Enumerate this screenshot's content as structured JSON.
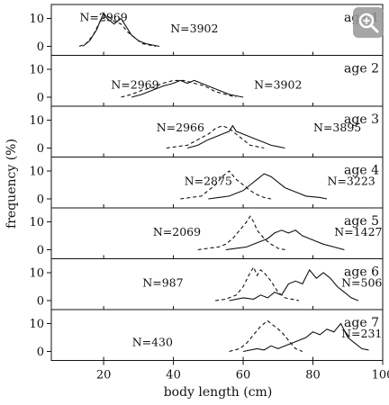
{
  "chart_data": {
    "type": "line",
    "xlabel": "body length (cm)",
    "ylabel": "frequency (%)",
    "xlim": [
      5,
      100
    ],
    "ylim": [
      0,
      15
    ],
    "x_ticks": [
      20,
      40,
      60,
      80,
      100
    ],
    "y_ticks": [
      0,
      10
    ],
    "grid": false,
    "panels": [
      {
        "label": "age 1",
        "n_dashed": "N=2969",
        "n_solid": "N=3902",
        "dashed": [
          [
            13,
            0
          ],
          [
            15,
            1
          ],
          [
            17,
            4
          ],
          [
            19,
            9
          ],
          [
            21,
            11
          ],
          [
            23,
            9
          ],
          [
            25,
            8
          ],
          [
            27,
            5
          ],
          [
            29,
            3
          ],
          [
            31,
            1
          ],
          [
            33,
            0.5
          ],
          [
            35,
            0
          ]
        ],
        "solid": [
          [
            14,
            0
          ],
          [
            16,
            2
          ],
          [
            18,
            6
          ],
          [
            20,
            12
          ],
          [
            21,
            10
          ],
          [
            22,
            9
          ],
          [
            23,
            8
          ],
          [
            24,
            9
          ],
          [
            25,
            10
          ],
          [
            26,
            8
          ],
          [
            28,
            4
          ],
          [
            30,
            2
          ],
          [
            32,
            1
          ],
          [
            34,
            0.5
          ],
          [
            36,
            0
          ]
        ]
      },
      {
        "label": "age 2",
        "n_dashed": "N=2969",
        "n_solid": "N=3902",
        "dashed": [
          [
            25,
            0
          ],
          [
            28,
            1
          ],
          [
            31,
            2.5
          ],
          [
            34,
            3.5
          ],
          [
            37,
            5
          ],
          [
            40,
            6
          ],
          [
            43,
            6
          ],
          [
            46,
            5
          ],
          [
            49,
            4
          ],
          [
            52,
            2
          ],
          [
            55,
            1
          ],
          [
            58,
            0
          ]
        ],
        "solid": [
          [
            28,
            0
          ],
          [
            31,
            1
          ],
          [
            34,
            2.5
          ],
          [
            37,
            4
          ],
          [
            40,
            5
          ],
          [
            42,
            6
          ],
          [
            44,
            5
          ],
          [
            46,
            6
          ],
          [
            48,
            5
          ],
          [
            50,
            4
          ],
          [
            52,
            3
          ],
          [
            54,
            2
          ],
          [
            56,
            1
          ],
          [
            58,
            0.5
          ],
          [
            60,
            0
          ]
        ]
      },
      {
        "label": "age 3",
        "n_dashed": "N=2966",
        "n_solid": "N=3895",
        "dashed": [
          [
            38,
            0
          ],
          [
            41,
            0.5
          ],
          [
            44,
            1
          ],
          [
            47,
            3
          ],
          [
            50,
            5
          ],
          [
            52,
            7
          ],
          [
            54,
            8
          ],
          [
            56,
            7
          ],
          [
            58,
            5
          ],
          [
            60,
            3
          ],
          [
            62,
            1
          ],
          [
            64,
            0.5
          ],
          [
            66,
            0
          ]
        ],
        "solid": [
          [
            44,
            0
          ],
          [
            47,
            1
          ],
          [
            50,
            3
          ],
          [
            52,
            4
          ],
          [
            54,
            5
          ],
          [
            56,
            6
          ],
          [
            57,
            8
          ],
          [
            58,
            6
          ],
          [
            60,
            5
          ],
          [
            62,
            4
          ],
          [
            64,
            3
          ],
          [
            66,
            2
          ],
          [
            68,
            1
          ],
          [
            70,
            0.5
          ],
          [
            72,
            0
          ]
        ]
      },
      {
        "label": "age 4",
        "n_dashed": "N=2875",
        "n_solid": "N=3223",
        "dashed": [
          [
            42,
            0
          ],
          [
            45,
            0.5
          ],
          [
            48,
            1
          ],
          [
            50,
            3
          ],
          [
            52,
            5
          ],
          [
            54,
            8
          ],
          [
            56,
            10
          ],
          [
            58,
            7
          ],
          [
            60,
            5
          ],
          [
            62,
            3
          ],
          [
            64,
            1.5
          ],
          [
            66,
            0.5
          ],
          [
            68,
            0
          ]
        ],
        "solid": [
          [
            50,
            0
          ],
          [
            53,
            0.5
          ],
          [
            56,
            1
          ],
          [
            58,
            2
          ],
          [
            60,
            3
          ],
          [
            62,
            5
          ],
          [
            64,
            7
          ],
          [
            66,
            9
          ],
          [
            68,
            8
          ],
          [
            70,
            6
          ],
          [
            72,
            4
          ],
          [
            74,
            3
          ],
          [
            76,
            2
          ],
          [
            78,
            1
          ],
          [
            82,
            0.5
          ],
          [
            84,
            0
          ]
        ]
      },
      {
        "label": "age 5",
        "n_dashed": "N=2069",
        "n_solid": "N=1427",
        "dashed": [
          [
            47,
            0
          ],
          [
            50,
            0.5
          ],
          [
            53,
            1
          ],
          [
            55,
            2
          ],
          [
            57,
            4
          ],
          [
            59,
            7
          ],
          [
            61,
            10
          ],
          [
            62,
            12
          ],
          [
            63,
            10
          ],
          [
            64,
            7
          ],
          [
            66,
            4
          ],
          [
            68,
            2
          ],
          [
            70,
            0.5
          ],
          [
            72,
            0
          ]
        ],
        "solid": [
          [
            55,
            0
          ],
          [
            58,
            0.5
          ],
          [
            61,
            1
          ],
          [
            63,
            2
          ],
          [
            65,
            3
          ],
          [
            67,
            4
          ],
          [
            69,
            6
          ],
          [
            71,
            7
          ],
          [
            73,
            6
          ],
          [
            75,
            7
          ],
          [
            77,
            5
          ],
          [
            79,
            4
          ],
          [
            81,
            3
          ],
          [
            83,
            2
          ],
          [
            86,
            1
          ],
          [
            89,
            0
          ]
        ]
      },
      {
        "label": "age 6",
        "n_dashed": "N=987",
        "n_solid": "N=506",
        "dashed": [
          [
            52,
            0
          ],
          [
            55,
            0.5
          ],
          [
            58,
            2
          ],
          [
            60,
            5
          ],
          [
            62,
            10
          ],
          [
            63,
            12
          ],
          [
            64,
            9
          ],
          [
            65,
            11
          ],
          [
            66,
            10
          ],
          [
            68,
            7
          ],
          [
            70,
            3
          ],
          [
            72,
            1
          ],
          [
            74,
            0.5
          ],
          [
            76,
            0
          ]
        ],
        "solid": [
          [
            56,
            0
          ],
          [
            60,
            1
          ],
          [
            63,
            0.5
          ],
          [
            65,
            2
          ],
          [
            67,
            1
          ],
          [
            69,
            3
          ],
          [
            71,
            2
          ],
          [
            73,
            6
          ],
          [
            75,
            7
          ],
          [
            77,
            6
          ],
          [
            79,
            11
          ],
          [
            81,
            8
          ],
          [
            83,
            10
          ],
          [
            85,
            8
          ],
          [
            87,
            5
          ],
          [
            89,
            3
          ],
          [
            91,
            1
          ],
          [
            93,
            0
          ]
        ]
      },
      {
        "label": "age 7",
        "n_dashed": "N=430",
        "n_solid": "N=231",
        "dashed": [
          [
            56,
            0
          ],
          [
            59,
            1
          ],
          [
            61,
            3
          ],
          [
            63,
            6
          ],
          [
            65,
            9
          ],
          [
            67,
            11
          ],
          [
            69,
            9
          ],
          [
            71,
            7
          ],
          [
            73,
            4
          ],
          [
            75,
            1
          ],
          [
            77,
            0
          ]
        ],
        "solid": [
          [
            60,
            0
          ],
          [
            64,
            1
          ],
          [
            66,
            0.5
          ],
          [
            68,
            2
          ],
          [
            70,
            1
          ],
          [
            72,
            2
          ],
          [
            74,
            3
          ],
          [
            76,
            4
          ],
          [
            78,
            5
          ],
          [
            80,
            7
          ],
          [
            82,
            6
          ],
          [
            84,
            8
          ],
          [
            86,
            7
          ],
          [
            88,
            10
          ],
          [
            90,
            5
          ],
          [
            92,
            3
          ],
          [
            94,
            1
          ],
          [
            96,
            0.5
          ]
        ]
      }
    ]
  }
}
